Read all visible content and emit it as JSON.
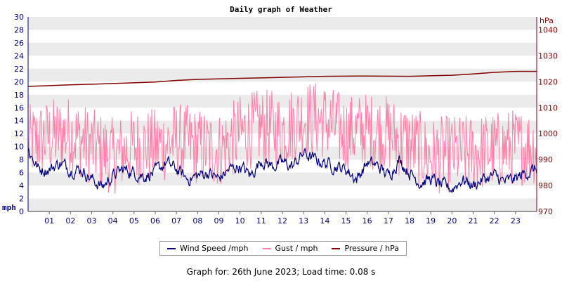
{
  "chart_data": {
    "type": "line",
    "title": "Daily graph of Weather",
    "x": {
      "ticks": [
        "01",
        "02",
        "03",
        "04",
        "05",
        "06",
        "07",
        "08",
        "09",
        "10",
        "11",
        "12",
        "13",
        "14",
        "15",
        "16",
        "17",
        "18",
        "19",
        "20",
        "21",
        "22",
        "23"
      ],
      "range_hours": [
        0,
        24
      ]
    },
    "y_left": {
      "label": "mph",
      "range": [
        0,
        30
      ],
      "ticks": [
        0,
        2,
        4,
        6,
        8,
        10,
        12,
        14,
        16,
        18,
        20,
        22,
        24,
        26,
        28,
        30
      ],
      "color": "#000080"
    },
    "y_right": {
      "label": "hPa",
      "range": [
        970,
        1045
      ],
      "ticks": [
        970,
        980,
        990,
        1000,
        1010,
        1020,
        1030,
        1040
      ],
      "color": "#800000"
    },
    "grid": "horizontal alternating bands",
    "series": [
      {
        "name": "Wind Speed /mph",
        "axis": "left",
        "color": "#000080",
        "hourly": [
          [
            0,
            9.5
          ],
          [
            0.5,
            6.5
          ],
          [
            1,
            6.5
          ],
          [
            1.5,
            7.5
          ],
          [
            2,
            6.5
          ],
          [
            2.5,
            6.5
          ],
          [
            3,
            5.0
          ],
          [
            3.5,
            3.8
          ],
          [
            4,
            5.5
          ],
          [
            4.5,
            6.5
          ],
          [
            5,
            6.0
          ],
          [
            5.5,
            5.5
          ],
          [
            6,
            6.0
          ],
          [
            6.5,
            7.5
          ],
          [
            7,
            6.5
          ],
          [
            7.5,
            5.0
          ],
          [
            8,
            5.5
          ],
          [
            8.5,
            6.0
          ],
          [
            9,
            5.0
          ],
          [
            9.5,
            6.5
          ],
          [
            10,
            7.0
          ],
          [
            10.5,
            5.5
          ],
          [
            11,
            8.0
          ],
          [
            11.5,
            7.0
          ],
          [
            12,
            7.5
          ],
          [
            12.5,
            7.0
          ],
          [
            13,
            9.0
          ],
          [
            13.5,
            8.0
          ],
          [
            14,
            7.5
          ],
          [
            14.5,
            7.0
          ],
          [
            15,
            6.5
          ],
          [
            15.5,
            5.0
          ],
          [
            16,
            7.5
          ],
          [
            16.5,
            7.0
          ],
          [
            17,
            5.5
          ],
          [
            17.5,
            8.0
          ],
          [
            18,
            6.0
          ],
          [
            18.5,
            4.5
          ],
          [
            19,
            5.0
          ],
          [
            19.5,
            4.0
          ],
          [
            20,
            3.5
          ],
          [
            20.5,
            5.0
          ],
          [
            21,
            4.0
          ],
          [
            21.5,
            5.0
          ],
          [
            22,
            5.5
          ],
          [
            22.5,
            4.5
          ],
          [
            23,
            5.0
          ],
          [
            23.5,
            6.0
          ],
          [
            24,
            6.5
          ]
        ]
      },
      {
        "name": "Gust / mph",
        "axis": "left",
        "color": "#ff7fa6",
        "hourly": [
          [
            0,
            10.5
          ],
          [
            1,
            11.5
          ],
          [
            2,
            12.0
          ],
          [
            3,
            10.0
          ],
          [
            4,
            8.5
          ],
          [
            5,
            10.0
          ],
          [
            6,
            10.0
          ],
          [
            7,
            11.0
          ],
          [
            8,
            10.0
          ],
          [
            9,
            9.5
          ],
          [
            10,
            12.0
          ],
          [
            11,
            13.0
          ],
          [
            12,
            12.5
          ],
          [
            13,
            14.5
          ],
          [
            14,
            14.0
          ],
          [
            15,
            12.0
          ],
          [
            16,
            12.5
          ],
          [
            17,
            12.0
          ],
          [
            18,
            10.5
          ],
          [
            19,
            8.5
          ],
          [
            20,
            9.0
          ],
          [
            21,
            9.0
          ],
          [
            22,
            9.5
          ],
          [
            23,
            10.0
          ],
          [
            24,
            10.0
          ]
        ]
      },
      {
        "name": "Pressure / hPa",
        "axis": "right",
        "color": "#800000",
        "hourly": [
          [
            0,
            1018.2
          ],
          [
            2,
            1018.8
          ],
          [
            4,
            1019.3
          ],
          [
            6,
            1019.9
          ],
          [
            7,
            1020.5
          ],
          [
            8,
            1020.9
          ],
          [
            10,
            1021.3
          ],
          [
            12,
            1021.7
          ],
          [
            14,
            1022.1
          ],
          [
            16,
            1022.2
          ],
          [
            18,
            1022.1
          ],
          [
            20,
            1022.5
          ],
          [
            21,
            1023.0
          ],
          [
            22,
            1023.6
          ],
          [
            23,
            1024.0
          ],
          [
            24,
            1024.0
          ]
        ]
      }
    ]
  },
  "footer": {
    "text": "Graph for: 26th June 2023; Load time: 0.08 s"
  }
}
